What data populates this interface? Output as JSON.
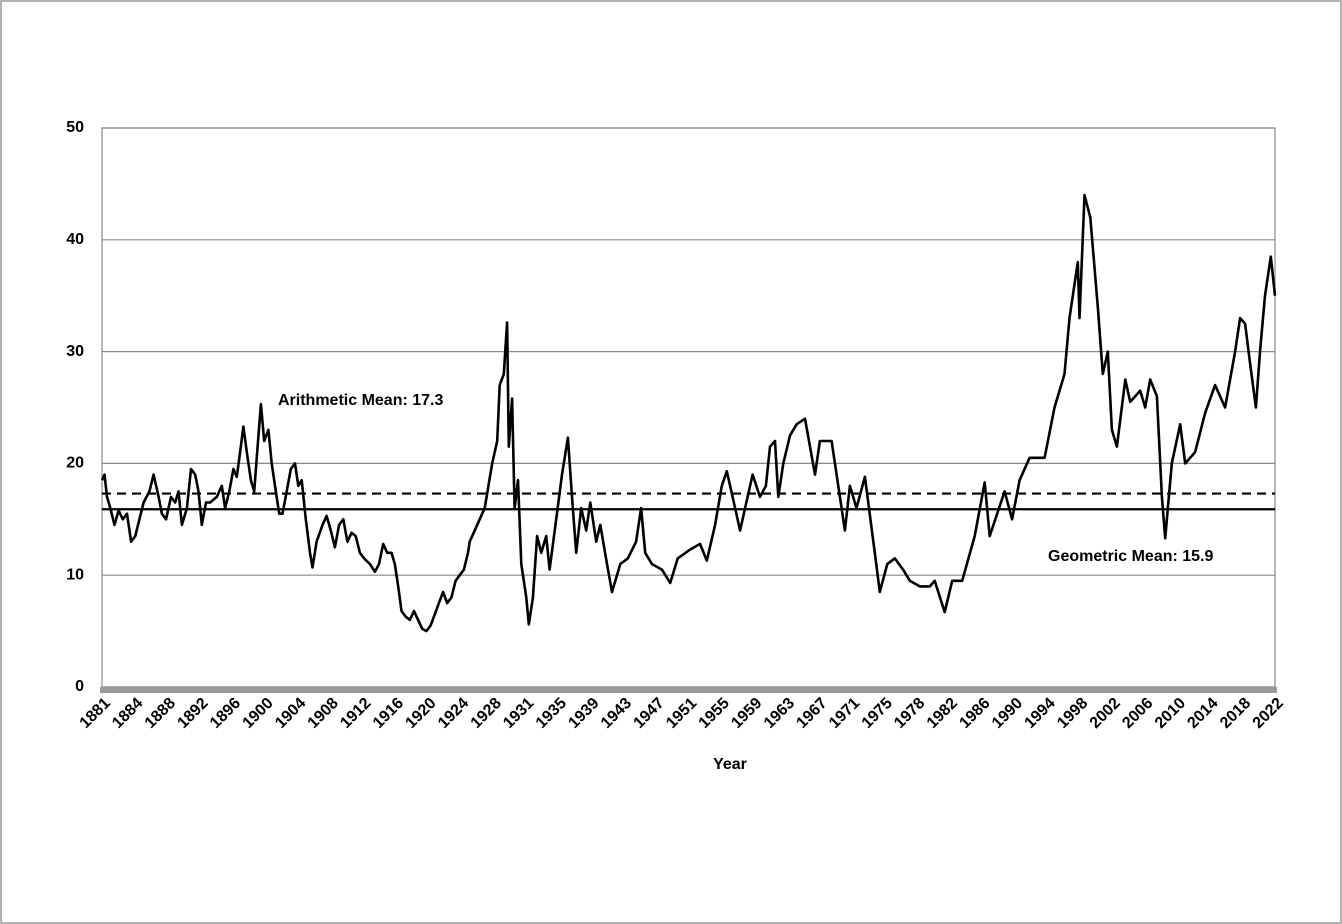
{
  "chart_data": {
    "type": "line",
    "x_label": "Year",
    "xlim": [
      1881,
      2022
    ],
    "xticks": [
      1881,
      {
        "value": 1884.92,
        "label": "1884"
      },
      {
        "value": 1888.83,
        "label": "1888"
      },
      {
        "value": 1892.75,
        "label": "1892"
      },
      {
        "value": 1896.67,
        "label": "1896"
      },
      {
        "value": 1900.58,
        "label": "1900"
      },
      {
        "value": 1904.5,
        "label": "1904"
      },
      {
        "value": 1908.42,
        "label": "1908"
      },
      {
        "value": 1912.33,
        "label": "1912"
      },
      {
        "value": 1916.25,
        "label": "1916"
      },
      {
        "value": 1920.17,
        "label": "1920"
      },
      {
        "value": 1924.08,
        "label": "1924"
      },
      1928,
      {
        "value": 1931.92,
        "label": "1931"
      },
      {
        "value": 1935.83,
        "label": "1935"
      },
      {
        "value": 1939.75,
        "label": "1939"
      },
      {
        "value": 1943.67,
        "label": "1943"
      },
      {
        "value": 1947.58,
        "label": "1947"
      },
      {
        "value": 1951.5,
        "label": "1951"
      },
      {
        "value": 1955.42,
        "label": "1955"
      },
      {
        "value": 1959.33,
        "label": "1959"
      },
      {
        "value": 1963.25,
        "label": "1963"
      },
      {
        "value": 1967.17,
        "label": "1967"
      },
      {
        "value": 1971.08,
        "label": "1971"
      },
      1975,
      {
        "value": 1978.92,
        "label": "1978"
      },
      {
        "value": 1982.83,
        "label": "1982"
      },
      {
        "value": 1986.75,
        "label": "1986"
      },
      {
        "value": 1990.67,
        "label": "1990"
      },
      {
        "value": 1994.58,
        "label": "1994"
      },
      {
        "value": 1998.5,
        "label": "1998"
      },
      {
        "value": 2002.42,
        "label": "2002"
      },
      {
        "value": 2006.33,
        "label": "2006"
      },
      {
        "value": 2010.25,
        "label": "2010"
      },
      {
        "value": 2014.17,
        "label": "2014"
      },
      {
        "value": 2018.08,
        "label": "2018"
      },
      2022
    ],
    "ylim": [
      0,
      50
    ],
    "yticks": [
      0,
      10,
      20,
      30,
      40,
      50
    ],
    "grid": true,
    "color": "#000000",
    "x": [
      1881.0,
      1881.3,
      1881.6,
      1882,
      1882.5,
      1883,
      1883.5,
      1884,
      1884.5,
      1885,
      1885.5,
      1886,
      1886.7,
      1887.2,
      1887.8,
      1888.2,
      1888.7,
      1889.3,
      1889.8,
      1890.2,
      1890.6,
      1891.2,
      1891.7,
      1892.2,
      1892.6,
      1893,
      1893.5,
      1894,
      1894.8,
      1895.4,
      1895.8,
      1896.3,
      1896.8,
      1897.2,
      1897.6,
      1898,
      1898.4,
      1898.9,
      1899.3,
      1899.7,
      1900.1,
      1900.5,
      1901,
      1901.4,
      1901.8,
      1902.3,
      1902.7,
      1903.2,
      1903.7,
      1904.2,
      1904.6,
      1905,
      1905.5,
      1906,
      1906.3,
      1906.8,
      1907.5,
      1908,
      1908.5,
      1909,
      1909.5,
      1910,
      1910.5,
      1911,
      1911.5,
      1912,
      1912.5,
      1913.2,
      1913.8,
      1914.3,
      1914.8,
      1915.3,
      1915.8,
      1916.2,
      1916.6,
      1917,
      1917.5,
      1918,
      1918.5,
      1919,
      1919.5,
      1920,
      1920.5,
      1921,
      1921.5,
      1922,
      1922.5,
      1923,
      1923.5,
      1924,
      1924.5,
      1925,
      1925.2,
      1927.0,
      1927.9,
      1928.5,
      1928.8,
      1929.3,
      1929.7,
      1929.9,
      1930.3,
      1930.6,
      1931.0,
      1931.4,
      1932.0,
      1932.3,
      1932.8,
      1933.3,
      1933.8,
      1934.4,
      1934.8,
      1935.6,
      1936.3,
      1937.0,
      1937.5,
      1938.0,
      1938.6,
      1939.2,
      1939.7,
      1940.4,
      1940.9,
      1941.7,
      1942.3,
      1943.3,
      1944.2,
      1945.2,
      1945.8,
      1946.3,
      1947.1,
      1948.3,
      1949.3,
      1950.2,
      1951.7,
      1952.9,
      1953.7,
      1954.7,
      1955.5,
      1956.1,
      1956.8,
      1957.7,
      1958.6,
      1959.2,
      1960.1,
      1960.8,
      1961.3,
      1961.9,
      1962.3,
      1962.9,
      1963.7,
      1964.5,
      1965.5,
      1966.7,
      1967.3,
      1968.7,
      1970.3,
      1970.9,
      1971.7,
      1972.7,
      1973.9,
      1974.5,
      1975.4,
      1976.3,
      1977.3,
      1978.1,
      1979.3,
      1980.5,
      1981.1,
      1982.3,
      1983.2,
      1984.4,
      1985.9,
      1987.1,
      1987.7,
      1989.5,
      1990.4,
      1991.3,
      1992.5,
      1994.3,
      1995.5,
      1996.7,
      1997.3,
      1998.3,
      1998.5,
      1999.1,
      1999.8,
      2000.7,
      2001.3,
      2001.9,
      2002.4,
      2003,
      2004,
      2004.6,
      2005.8,
      2006.4,
      2007,
      2007.8,
      2008.4,
      2008.8,
      2009.6,
      2010.6,
      2011.2,
      2012.4,
      2013.6,
      2014.8,
      2016,
      2017.2,
      2017.8,
      2018.4,
      2019,
      2019.7,
      2020.2,
      2020.8,
      2021.5,
      2022
    ],
    "values": [
      18.5,
      19,
      17,
      16,
      14.5,
      15.8,
      15,
      15.5,
      13,
      13.5,
      15,
      16.5,
      17.5,
      19,
      17,
      15.5,
      15,
      17,
      16.5,
      17.5,
      14.5,
      16,
      19.5,
      19,
      17.5,
      14.5,
      16.5,
      16.5,
      17,
      18,
      16,
      17.5,
      19.5,
      18.8,
      21,
      23.3,
      21,
      18.5,
      17.5,
      21.5,
      25.3,
      22,
      23,
      20,
      18,
      15.5,
      15.5,
      17.5,
      19.5,
      20,
      18,
      18.5,
      15,
      12,
      10.7,
      13,
      14.5,
      15.3,
      14,
      12.5,
      14.5,
      15,
      13,
      13.8,
      13.5,
      12,
      11.5,
      11,
      10.3,
      11,
      12.8,
      12,
      12,
      11,
      9,
      6.8,
      6.3,
      6,
      6.8,
      6,
      5.2,
      5,
      5.5,
      6.5,
      7.5,
      8.5,
      7.5,
      8,
      9.5,
      10,
      10.5,
      12,
      13,
      16,
      20,
      22,
      27,
      28,
      32.6,
      21.5,
      25.8,
      16,
      18.5,
      11,
      8,
      5.6,
      8,
      13.5,
      12,
      13.5,
      10.5,
      15,
      19,
      22.3,
      17,
      12,
      16,
      14,
      16.5,
      13,
      14.5,
      11,
      8.5,
      11,
      11.5,
      13,
      16,
      12,
      11,
      10.5,
      9.3,
      11.5,
      12.3,
      12.8,
      11.3,
      14.5,
      18,
      19.3,
      17,
      14,
      17,
      19,
      17,
      18,
      21.5,
      22,
      17,
      20,
      22.5,
      23.5,
      24,
      19,
      22,
      22,
      14,
      18,
      16,
      18.8,
      12,
      8.5,
      11,
      11.5,
      10.5,
      9.5,
      9,
      9,
      9.5,
      6.7,
      9.5,
      9.5,
      13.5,
      18.3,
      13.5,
      17.5,
      15,
      18.5,
      20.5,
      20.5,
      25,
      28,
      33,
      38,
      33,
      44,
      42,
      34,
      28,
      30,
      23,
      21.5,
      27.5,
      25.5,
      26.5,
      25,
      27.5,
      26,
      17,
      13.3,
      20,
      23.5,
      20,
      21,
      24.5,
      27,
      25,
      30,
      33,
      32.5,
      29,
      25,
      30,
      35,
      38.5,
      35
    ],
    "mean_lines": [
      {
        "label": "Arithmetic Mean: 17.3",
        "value": 17.3,
        "style": "dashed"
      },
      {
        "label": "Geometric Mean: 15.9",
        "value": 15.9,
        "style": "solid"
      }
    ]
  }
}
